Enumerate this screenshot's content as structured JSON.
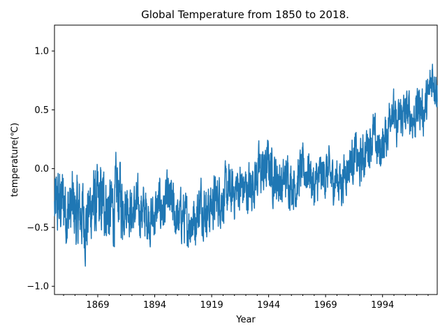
{
  "chart_data": {
    "type": "line",
    "title": "Global Temperature from 1850 to 2018.",
    "xlabel": "Year",
    "ylabel": "temperature(℃)",
    "xlim": [
      1850,
      2018
    ],
    "ylim": [
      -1.07,
      1.22
    ],
    "x_ticks": [
      1869,
      1894,
      1919,
      1944,
      1969,
      1994
    ],
    "y_ticks": [
      -1.0,
      -0.5,
      0.0,
      0.5,
      1.0
    ],
    "y_tick_labels": [
      "−1.0",
      "−0.5",
      "0.0",
      "0.5",
      "1.0"
    ],
    "grid": false,
    "legend": "none",
    "series": [
      {
        "color": "#1f77b4",
        "x": [
          1850,
          1852,
          1854,
          1856,
          1858,
          1860,
          1862,
          1864,
          1866,
          1868,
          1870,
          1872,
          1874,
          1876,
          1878,
          1880,
          1882,
          1884,
          1886,
          1888,
          1890,
          1892,
          1894,
          1896,
          1898,
          1900,
          1902,
          1904,
          1906,
          1908,
          1910,
          1912,
          1914,
          1916,
          1918,
          1920,
          1922,
          1924,
          1926,
          1928,
          1930,
          1932,
          1934,
          1936,
          1938,
          1940,
          1942,
          1944,
          1946,
          1948,
          1950,
          1952,
          1954,
          1956,
          1958,
          1960,
          1962,
          1964,
          1966,
          1968,
          1970,
          1972,
          1974,
          1976,
          1978,
          1980,
          1982,
          1984,
          1986,
          1988,
          1990,
          1992,
          1994,
          1996,
          1998,
          2000,
          2002,
          2004,
          2006,
          2008,
          2010,
          2012,
          2014,
          2016,
          2018
        ],
        "values": [
          -0.35,
          -0.3,
          -0.28,
          -0.38,
          -0.33,
          -0.42,
          -0.36,
          -0.48,
          -0.3,
          -0.32,
          -0.3,
          -0.28,
          -0.36,
          -0.34,
          -0.18,
          -0.31,
          -0.28,
          -0.38,
          -0.33,
          -0.36,
          -0.38,
          -0.42,
          -0.41,
          -0.3,
          -0.35,
          -0.27,
          -0.33,
          -0.46,
          -0.38,
          -0.47,
          -0.44,
          -0.42,
          -0.28,
          -0.33,
          -0.35,
          -0.28,
          -0.25,
          -0.25,
          -0.2,
          -0.22,
          -0.17,
          -0.15,
          -0.18,
          -0.16,
          -0.08,
          -0.02,
          -0.04,
          0.05,
          -0.06,
          -0.08,
          -0.15,
          -0.05,
          -0.12,
          -0.15,
          -0.02,
          -0.03,
          -0.01,
          -0.18,
          -0.08,
          -0.06,
          -0.03,
          -0.1,
          -0.08,
          -0.12,
          0.0,
          0.05,
          0.12,
          0.02,
          0.12,
          0.22,
          0.28,
          0.15,
          0.2,
          0.3,
          0.58,
          0.32,
          0.45,
          0.45,
          0.48,
          0.42,
          0.55,
          0.48,
          0.58,
          0.82,
          0.68
        ]
      }
    ]
  }
}
